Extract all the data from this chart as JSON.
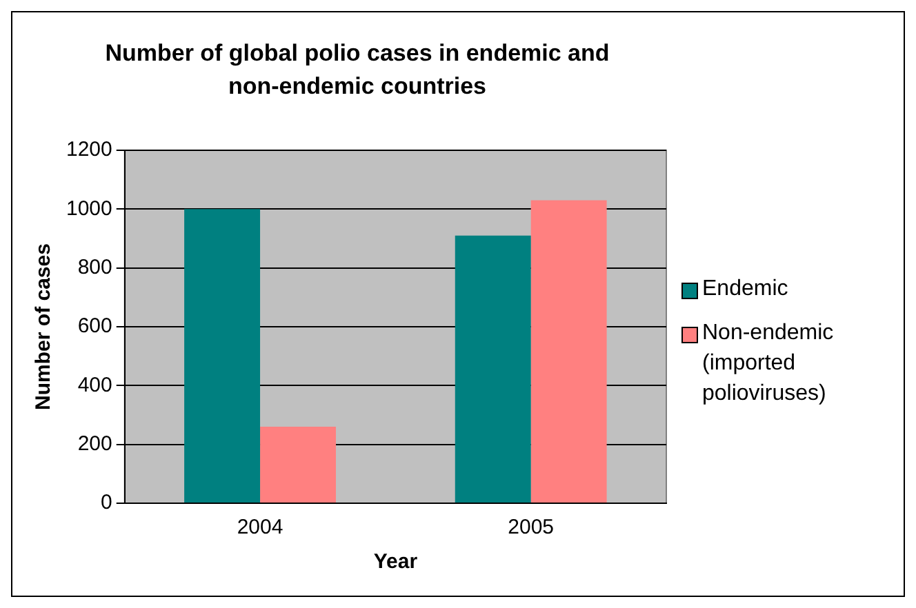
{
  "chart_data": {
    "type": "bar",
    "title": "Number of global polio cases in endemic and non-endemic countries",
    "xlabel": "Year",
    "ylabel": "Number of cases",
    "categories": [
      "2004",
      "2005"
    ],
    "series": [
      {
        "name": "Endemic",
        "color": "#008080",
        "values": [
          1000,
          910
        ]
      },
      {
        "name": "Non-endemic (imported polioviruses)",
        "color": "#ff8080",
        "values": [
          260,
          1030
        ]
      }
    ],
    "ylim": [
      0,
      1200
    ],
    "yticks": [
      0,
      200,
      400,
      600,
      800,
      1000,
      1200
    ],
    "grid": "y",
    "legend": "right"
  }
}
